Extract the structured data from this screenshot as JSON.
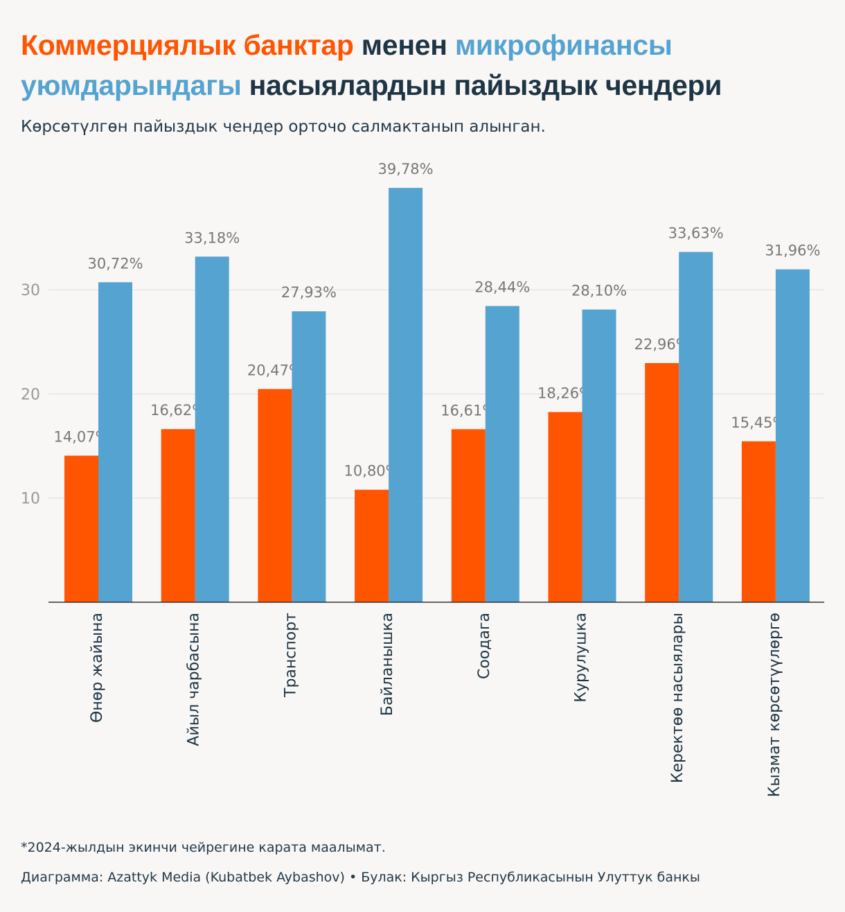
{
  "header": {
    "title_part1": "Коммерциялык банктар",
    "title_part2": "менен",
    "title_part3": "микрофинансы уюмдарындагы",
    "title_part4": "насыялардын пайыздык чендери",
    "subtitle": "Көрсөтүлгөн пайыздык чендер орточо салмактанып алынган."
  },
  "colors": {
    "banks": "#ff5400",
    "microfinance": "#55a3d0",
    "text": "#1e3545",
    "grid": "#dddddd",
    "label": "#777777"
  },
  "chart_data": {
    "type": "bar",
    "title": "Коммерциялык банктар менен микрофинансы уюмдарындагы насыялардын пайыздык чендери",
    "xlabel": "",
    "ylabel": "",
    "ylim": [
      0,
      40
    ],
    "yticks": [
      10,
      20,
      30
    ],
    "grid": true,
    "categories": [
      "Өнөр жайына",
      "Айыл чарбасына",
      "Транспорт",
      "Байланышка",
      "Соодага",
      "Курулушка",
      "Керектөө насыялары",
      "Кызмат көрсөтүүлөргө"
    ],
    "series": [
      {
        "name": "Коммерциялык банктар",
        "color": "#ff5400",
        "values": [
          14.07,
          16.62,
          20.47,
          10.8,
          16.61,
          18.26,
          22.96,
          15.45
        ],
        "labels": [
          "14,07%",
          "16,62%",
          "20,47%",
          "10,80%",
          "16,61%",
          "18,26%",
          "22,96%",
          "15,45%"
        ]
      },
      {
        "name": "микрофинансы уюмдарындагы",
        "color": "#55a3d0",
        "values": [
          30.72,
          33.18,
          27.93,
          39.78,
          28.44,
          28.1,
          33.63,
          31.96
        ],
        "labels": [
          "30,72%",
          "33,18%",
          "27,93%",
          "39,78%",
          "28,44%",
          "28,10%",
          "33,63%",
          "31,96%"
        ]
      }
    ]
  },
  "footer": {
    "note": "*2024-жылдын экинчи чейрегине карата маалымат.",
    "chart_credit": "Диаграмма: Azattyk Media (Kubatbek Aybashov)",
    "separator": "•",
    "source": "Булак: Кыргыз Республикасынын Улуттук банкы"
  }
}
